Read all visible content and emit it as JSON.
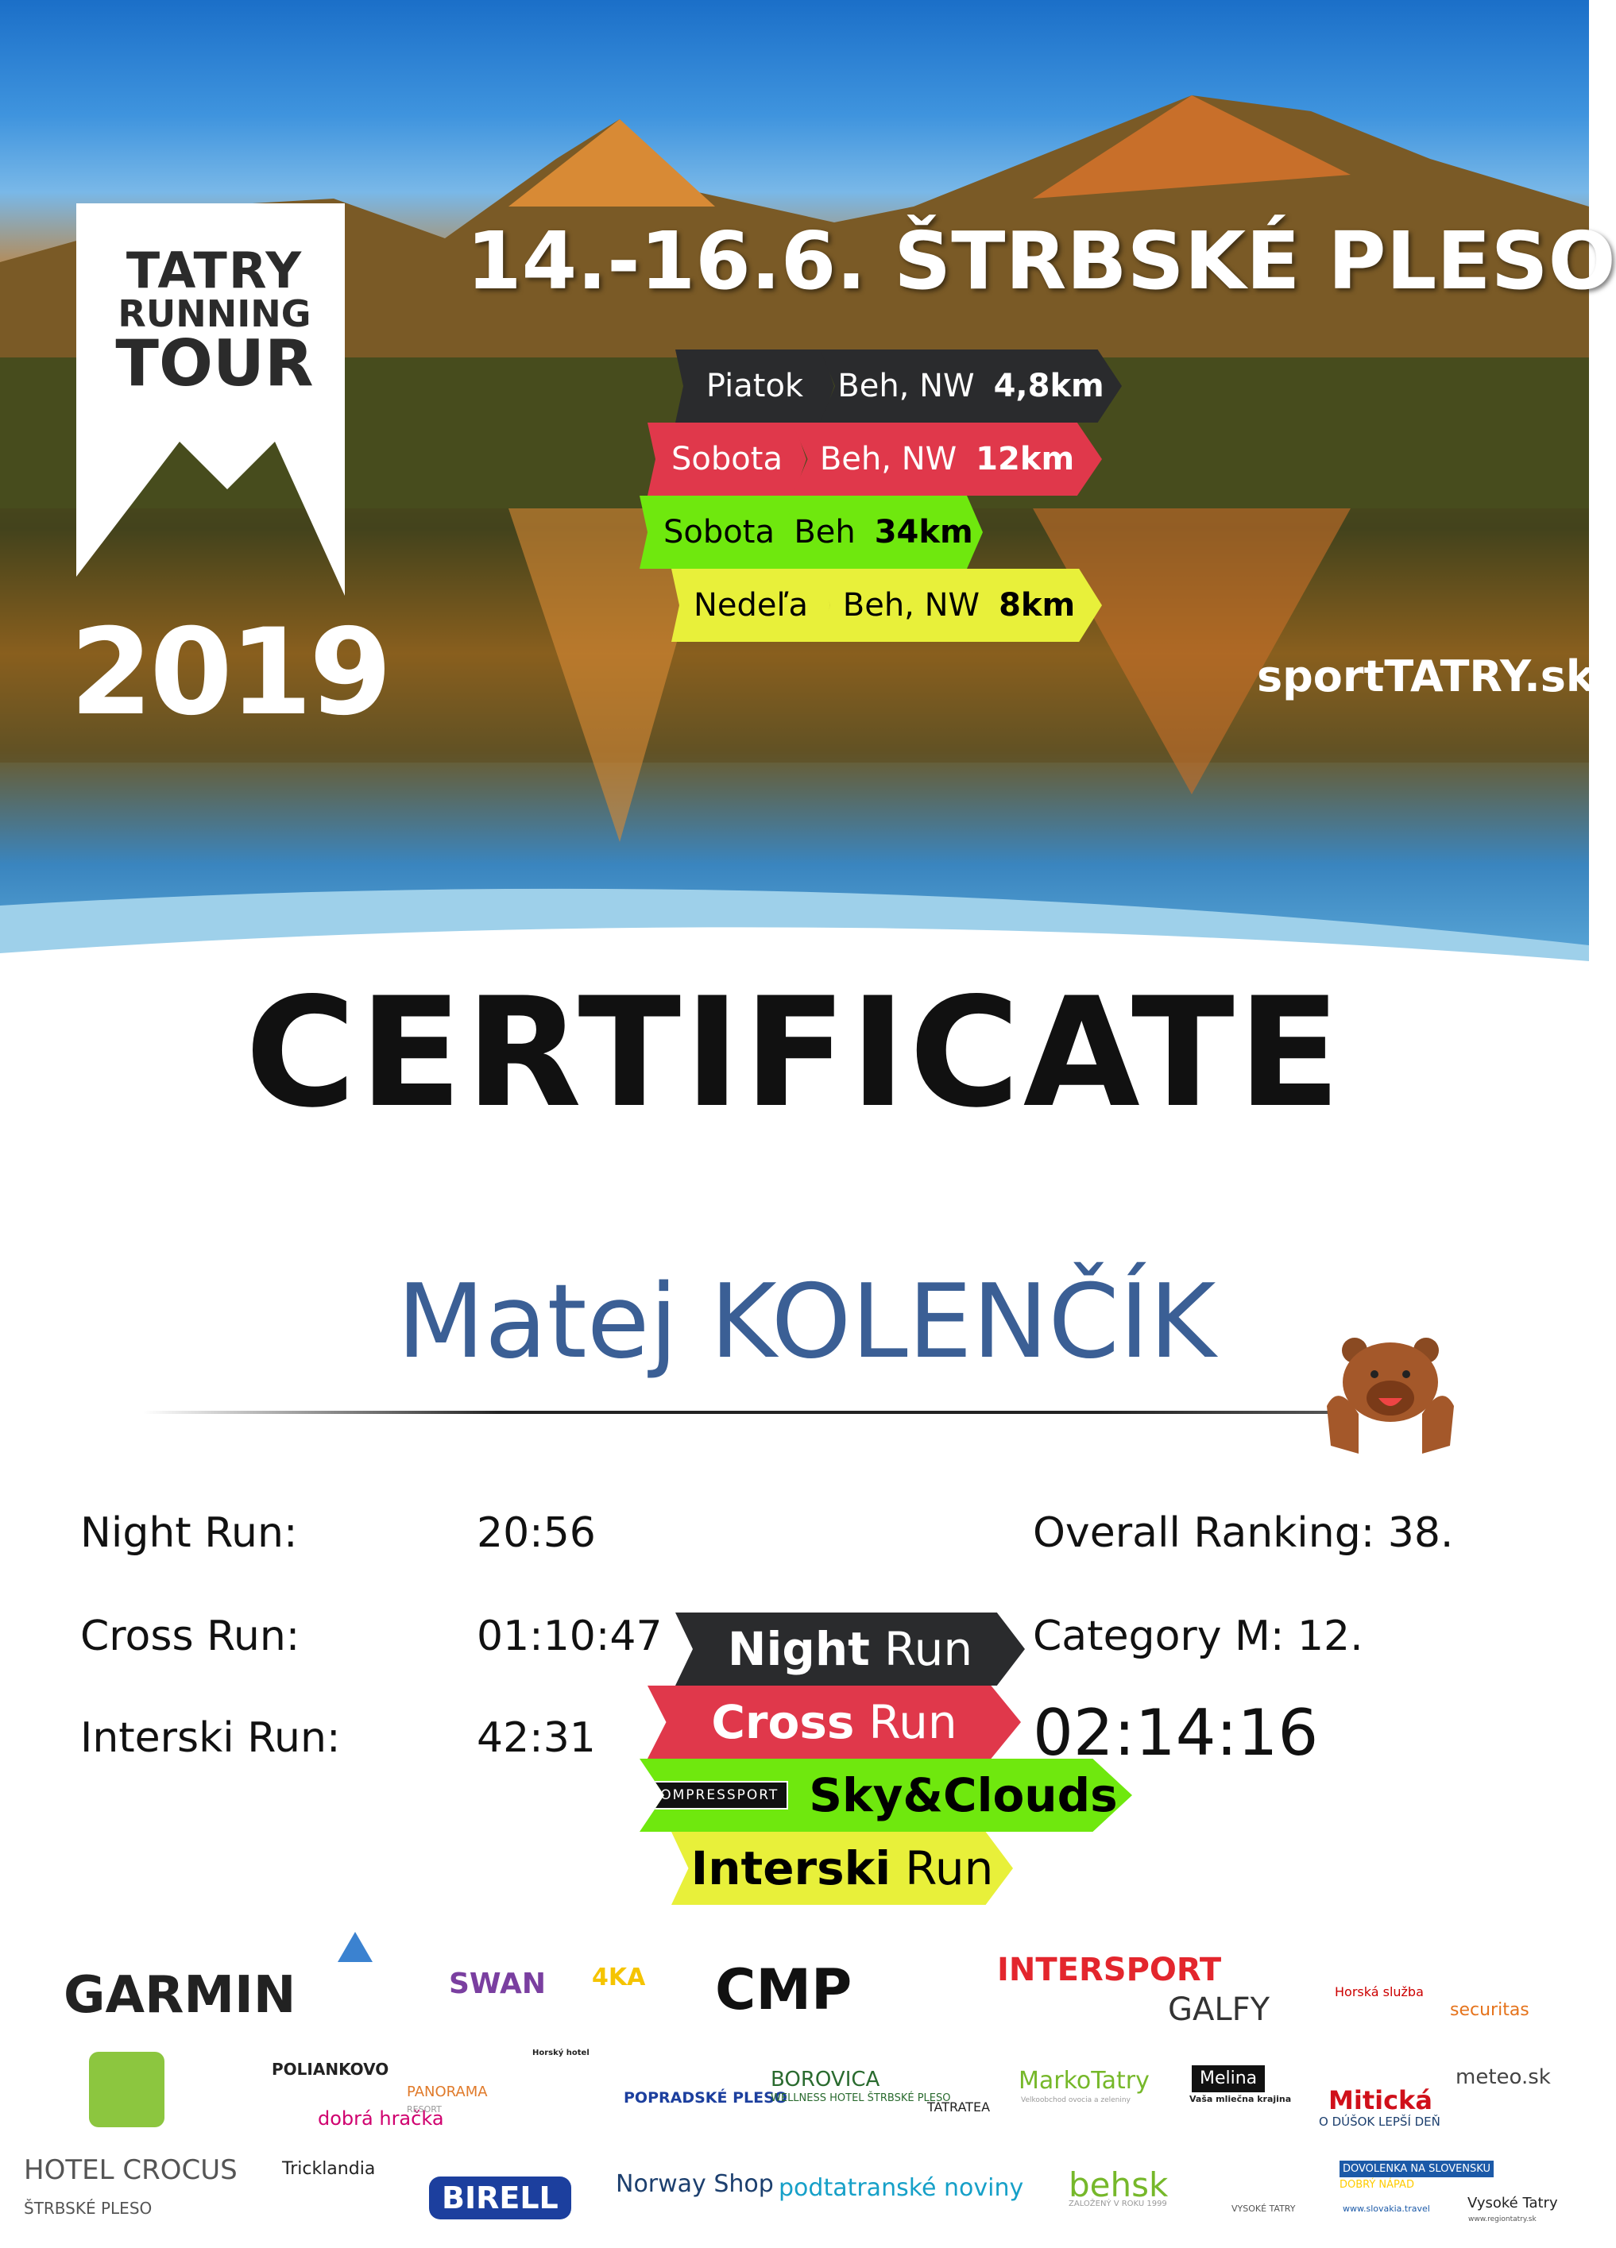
{
  "header": {
    "logo": {
      "line1": "TATRY",
      "line2": "RUNNING",
      "line3": "TOUR"
    },
    "year": "2019",
    "date_location": "14.-16.6.  ŠTRBSKÉ PLESO",
    "races": [
      {
        "day": "Piatok",
        "name_bold": "Night",
        "name_light": "Run",
        "type": "Beh, NW",
        "distance": "4,8km",
        "color": "#2a2b2d",
        "text": "#ffffff"
      },
      {
        "day": "Sobota",
        "name_bold": "Cross",
        "name_light": "Run",
        "type": "Beh, NW",
        "distance": "12km",
        "color": "#e0384b",
        "text": "#ffffff"
      },
      {
        "day": "Sobota",
        "sponsor": "COMPRESSPORT",
        "name_bold": "Sky&Clouds",
        "name_light": "",
        "type": "Beh",
        "distance": "34km",
        "color": "#6fe80e",
        "text": "#000000"
      },
      {
        "day": "Nedeľa",
        "name_bold": "Interski",
        "name_light": "Run",
        "type": "Beh, NW",
        "distance": "8km",
        "color": "#e8f03a",
        "text": "#000000"
      }
    ],
    "website": "sportTATRY.sk"
  },
  "certificate": {
    "title": "CERTIFICATE",
    "participant": "Matej KOLENČÍK",
    "results": [
      {
        "label": "Night Run:",
        "time": "20:56"
      },
      {
        "label": "Cross Run:",
        "time": "01:10:47"
      },
      {
        "label": "Interski Run:",
        "time": "42:31"
      }
    ],
    "overall_ranking": "Overall Ranking: 38.",
    "category": "Category M: 12.",
    "total_time": "02:14:16"
  },
  "sponsors": [
    "GARMIN",
    "SWAN",
    "4KA",
    "CMP",
    "INTERSPORT",
    "GALFY",
    "Horská služba",
    "securitas",
    "HOTEL CROCUS",
    "ŠTRBSKÉ PLESO",
    "POLIANKOVO",
    "dobrá hračka",
    "PANORAMA",
    "RESORT",
    "Horský hotel",
    "POPRADSKÉ PLESO",
    "BOROVICA",
    "WELLNESS HOTEL ŠTRBSKÉ PLESO",
    "TATRATEA",
    "MarkoTatry",
    "Velkoobchod ovocia a zeleniny",
    "Melina",
    "Vaša mliečna krajina",
    "Mitická",
    "O DÚŠOK LEPŠÍ DEŇ",
    "meteo.sk",
    "Tricklandia",
    "BIRELL",
    "Norway Shop",
    "podtatranské noviny",
    "behsk",
    "ZALOŽENÝ V ROKU 1999",
    "VYSOKÉ TATRY",
    "DOVOLENKA NA SLOVENSKU",
    "DOBRÝ NÁPAD",
    "www.slovakia.travel",
    "Vysoké Tatry",
    "www.regiontatry.sk"
  ]
}
